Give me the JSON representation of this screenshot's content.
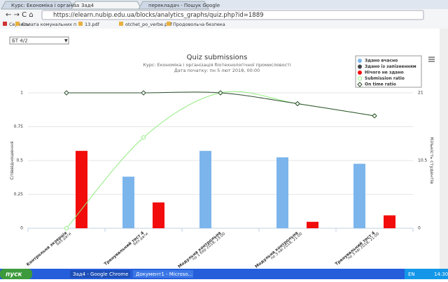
{
  "browser": {
    "tabs": [
      "Курс: Економіка і організа",
      "Зад4",
      "перекладач - Пошук Google"
    ],
    "url": "https://elearn.nubip.edu.ua/blocks/analytics_graphs/quiz.php?id=1889",
    "bookmarks": [
      "Сервисы",
      "Сплата комунальних п",
      "13.pdf",
      "otchet_po_verbe.pdf",
      "Продовольча безпека"
    ]
  },
  "page": {
    "select": "БТ 4/2"
  },
  "chart_data": {
    "type": "combo",
    "title": "Quiz submissions",
    "subtitle": [
      "Курс: Економіка і організація біотехнологічної промисловості",
      "Дата початку: пн 5 лют 2018, 00:00"
    ],
    "categories": [
      "Контрольна экзерція",
      "Тренувальний тест 4",
      "Модульна контрольна",
      "Модульна контрольна",
      "Тренувальний тест 4"
    ],
    "category_dates": [
      "Без дати",
      "Без дати",
      "по 1 бер 2018, 23:00",
      "по 3 кві 2018, 21:00",
      "по 3 кві 2018, 21:00"
    ],
    "ylabel": "Співвідношення",
    "y2label": "Кількість студентів",
    "ylim": [
      0,
      1
    ],
    "yticks": [
      0,
      0.25,
      0.5,
      0.75,
      1
    ],
    "y2lim": [
      0,
      21
    ],
    "y2ticks": [
      0,
      10.5,
      21
    ],
    "grid": true,
    "legend": "top-right",
    "series": [
      {
        "name": "Здано вчасно",
        "type": "bar",
        "axis": "y2",
        "color": "#7cb5ec",
        "values": [
          0,
          8,
          12,
          11,
          10
        ]
      },
      {
        "name": "Здано із запізненням",
        "type": "bar",
        "axis": "y2",
        "color": "#434348",
        "values": [
          0,
          0,
          0,
          0,
          0
        ]
      },
      {
        "name": "Нічого не здано",
        "type": "bar",
        "axis": "y2",
        "color": "#f20c0c",
        "values": [
          12,
          4,
          0,
          1,
          2
        ]
      },
      {
        "name": "Submission ratio",
        "type": "line",
        "color": "#90ed7d",
        "marker": "circle",
        "values": [
          0,
          0.67,
          1,
          0.92,
          0.83
        ]
      },
      {
        "name": "On time ratio",
        "type": "line",
        "color": "#2f4f2f",
        "marker": "diamond",
        "values": [
          1,
          1,
          1,
          0.92,
          0.83
        ]
      }
    ]
  },
  "taskbar": {
    "start": "пуск",
    "items": [
      "Зад4 - Google Chrome",
      "Документ1 - Microso..."
    ],
    "lang": "EN",
    "clock": "14:30"
  }
}
